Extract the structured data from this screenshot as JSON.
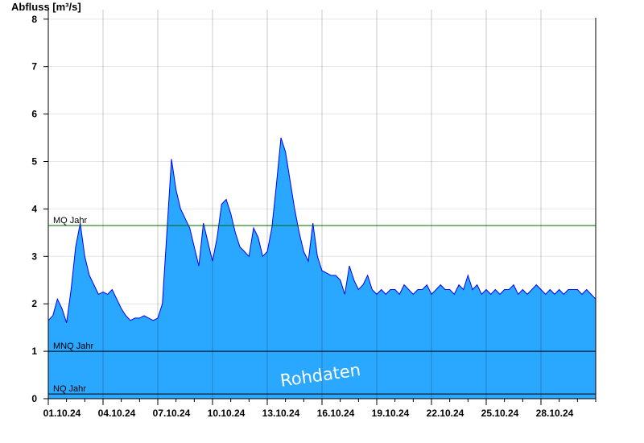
{
  "chart_data": {
    "type": "area",
    "title": "",
    "ylabel": "Abfluss [m³/s]",
    "xlabel": "",
    "ylim": [
      0,
      8.2
    ],
    "yticks": [
      0,
      1,
      2,
      3,
      4,
      5,
      6,
      7,
      8
    ],
    "x_start": "01.10.24",
    "x_end": "31.10.24",
    "xtick_labels": [
      "01.10.24",
      "04.10.24",
      "07.10.24",
      "10.10.24",
      "13.10.24",
      "16.10.24",
      "19.10.24",
      "22.10.24",
      "25.10.24",
      "28.10.24"
    ],
    "grid": true,
    "series": [
      {
        "name": "",
        "color": "#2aa7ff",
        "line_color": "#0000ff",
        "x": [
          "01.10.24",
          "01.10.24 06:00",
          "01.10.24 12:00",
          "01.10.24 18:00",
          "02.10.24",
          "02.10.24 06:00",
          "02.10.24 12:00",
          "02.10.24 18:00",
          "03.10.24",
          "03.10.24 06:00",
          "03.10.24 12:00",
          "03.10.24 18:00",
          "04.10.24",
          "04.10.24 06:00",
          "04.10.24 12:00",
          "04.10.24 18:00",
          "05.10.24",
          "05.10.24 06:00",
          "05.10.24 12:00",
          "05.10.24 18:00",
          "06.10.24",
          "06.10.24 06:00",
          "06.10.24 12:00",
          "06.10.24 18:00",
          "07.10.24",
          "07.10.24 06:00",
          "07.10.24 12:00",
          "07.10.24 18:00",
          "08.10.24",
          "08.10.24 06:00",
          "08.10.24 12:00",
          "08.10.24 18:00",
          "09.10.24",
          "09.10.24 06:00",
          "09.10.24 12:00",
          "09.10.24 18:00",
          "10.10.24",
          "10.10.24 06:00",
          "10.10.24 12:00",
          "10.10.24 18:00",
          "11.10.24",
          "11.10.24 06:00",
          "11.10.24 12:00",
          "11.10.24 18:00",
          "12.10.24",
          "12.10.24 06:00",
          "12.10.24 12:00",
          "12.10.24 18:00",
          "13.10.24",
          "13.10.24 06:00",
          "13.10.24 12:00",
          "13.10.24 18:00",
          "14.10.24",
          "14.10.24 06:00",
          "14.10.24 12:00",
          "14.10.24 18:00",
          "15.10.24",
          "15.10.24 06:00",
          "15.10.24 12:00",
          "15.10.24 18:00",
          "16.10.24",
          "16.10.24 06:00",
          "16.10.24 12:00",
          "16.10.24 18:00",
          "17.10.24",
          "17.10.24 06:00",
          "17.10.24 12:00",
          "17.10.24 18:00",
          "18.10.24",
          "18.10.24 06:00",
          "18.10.24 12:00",
          "18.10.24 18:00",
          "19.10.24",
          "19.10.24 06:00",
          "19.10.24 12:00",
          "19.10.24 18:00",
          "20.10.24",
          "20.10.24 06:00",
          "20.10.24 12:00",
          "20.10.24 18:00",
          "21.10.24",
          "21.10.24 06:00",
          "21.10.24 12:00",
          "21.10.24 18:00",
          "22.10.24",
          "22.10.24 06:00",
          "22.10.24 12:00",
          "22.10.24 18:00",
          "23.10.24",
          "23.10.24 06:00",
          "23.10.24 12:00",
          "23.10.24 18:00",
          "24.10.24",
          "24.10.24 06:00",
          "24.10.24 12:00",
          "24.10.24 18:00",
          "25.10.24",
          "25.10.24 06:00",
          "25.10.24 12:00",
          "25.10.24 18:00",
          "26.10.24",
          "26.10.24 06:00",
          "26.10.24 12:00",
          "26.10.24 18:00",
          "27.10.24",
          "27.10.24 06:00",
          "27.10.24 12:00",
          "27.10.24 18:00",
          "28.10.24",
          "28.10.24 06:00",
          "28.10.24 12:00",
          "28.10.24 18:00",
          "29.10.24",
          "29.10.24 06:00",
          "29.10.24 12:00",
          "29.10.24 18:00",
          "30.10.24",
          "30.10.24 06:00",
          "30.10.24 12:00",
          "30.10.24 18:00",
          "31.10.24"
        ],
        "values": [
          1.65,
          1.75,
          2.1,
          1.9,
          1.6,
          2.3,
          3.2,
          3.7,
          3.0,
          2.6,
          2.4,
          2.2,
          2.25,
          2.2,
          2.3,
          2.1,
          1.9,
          1.75,
          1.65,
          1.7,
          1.7,
          1.75,
          1.7,
          1.65,
          1.7,
          2.0,
          3.5,
          5.05,
          4.4,
          4.0,
          3.8,
          3.6,
          3.2,
          2.8,
          3.7,
          3.3,
          2.9,
          3.4,
          4.1,
          4.2,
          3.9,
          3.5,
          3.2,
          3.1,
          3.0,
          3.6,
          3.4,
          3.0,
          3.1,
          3.6,
          4.5,
          5.5,
          5.2,
          4.6,
          4.0,
          3.5,
          3.1,
          2.9,
          3.7,
          3.0,
          2.7,
          2.65,
          2.6,
          2.6,
          2.5,
          2.2,
          2.8,
          2.5,
          2.3,
          2.4,
          2.6,
          2.3,
          2.2,
          2.3,
          2.2,
          2.3,
          2.3,
          2.2,
          2.4,
          2.3,
          2.2,
          2.3,
          2.3,
          2.4,
          2.2,
          2.3,
          2.4,
          2.3,
          2.3,
          2.2,
          2.4,
          2.3,
          2.6,
          2.3,
          2.4,
          2.2,
          2.3,
          2.2,
          2.3,
          2.2,
          2.3,
          2.3,
          2.4,
          2.2,
          2.3,
          2.2,
          2.3,
          2.4,
          2.3,
          2.2,
          2.3,
          2.2,
          2.3,
          2.2,
          2.3,
          2.3,
          2.3,
          2.2,
          2.3,
          2.2,
          2.1
        ]
      }
    ],
    "reference_lines": [
      {
        "label": "MQ Jahr",
        "value": 3.65,
        "color": "#006400"
      },
      {
        "label": "MNQ Jahr",
        "value": 1.0,
        "color": "#000000"
      },
      {
        "label": "NQ Jahr",
        "value": 0.1,
        "color": "#000000"
      }
    ],
    "watermark": "Rohdaten"
  }
}
